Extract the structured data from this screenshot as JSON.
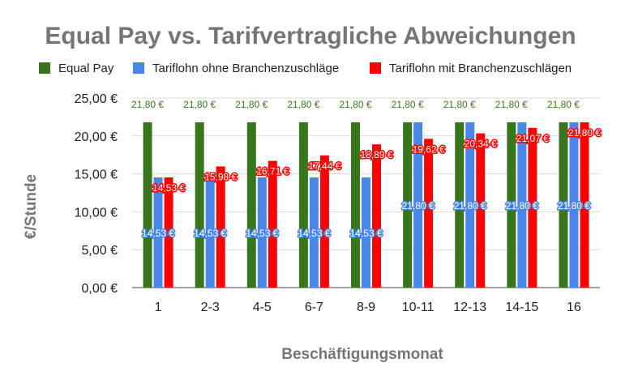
{
  "chart_data": {
    "type": "bar",
    "title": "Equal Pay vs. Tarifvertragliche Abweichungen",
    "xlabel": "Beschäftigungsmonat",
    "ylabel": "€/Stunde",
    "ylim": [
      0,
      25
    ],
    "yticks": [
      "0,00 €",
      "5,00 €",
      "10,00 €",
      "15,00 €",
      "20,00 €",
      "25,00 €"
    ],
    "grid": true,
    "legend_position": "top",
    "categories": [
      "1",
      "2-3",
      "4-5",
      "6-7",
      "8-9",
      "10-11",
      "12-13",
      "14-15",
      "16"
    ],
    "series": [
      {
        "name": "Equal Pay",
        "color": "#38761d",
        "values": [
          21.8,
          21.8,
          21.8,
          21.8,
          21.8,
          21.8,
          21.8,
          21.8,
          21.8
        ],
        "labels": [
          "21,80 €",
          "21,80 €",
          "21,80 €",
          "21,80 €",
          "21,80 €",
          "21,80 €",
          "21,80 €",
          "21,80 €",
          "21,80 €"
        ]
      },
      {
        "name": "Tariflohn ohne Branchenzuschläge",
        "color": "#4a86e8",
        "values": [
          14.53,
          14.53,
          14.53,
          14.53,
          14.53,
          21.8,
          21.8,
          21.8,
          21.8
        ],
        "labels": [
          "14,53 €",
          "14,53 €",
          "14,53 €",
          "14,53 €",
          "14,53 €",
          "21,80 €",
          "21,80 €",
          "21,80 €",
          "21,80 €"
        ]
      },
      {
        "name": "Tariflohn mit Branchenzuschlägen",
        "color": "#ff0000",
        "values": [
          14.53,
          15.98,
          16.71,
          17.44,
          18.89,
          19.62,
          20.34,
          21.07,
          21.8
        ],
        "labels": [
          "14,53 €",
          "15,98 €",
          "16,71 €",
          "17,44 €",
          "18,89 €",
          "19,62 €",
          "20,34 €",
          "21,07 €",
          "21,80 €"
        ]
      }
    ]
  }
}
